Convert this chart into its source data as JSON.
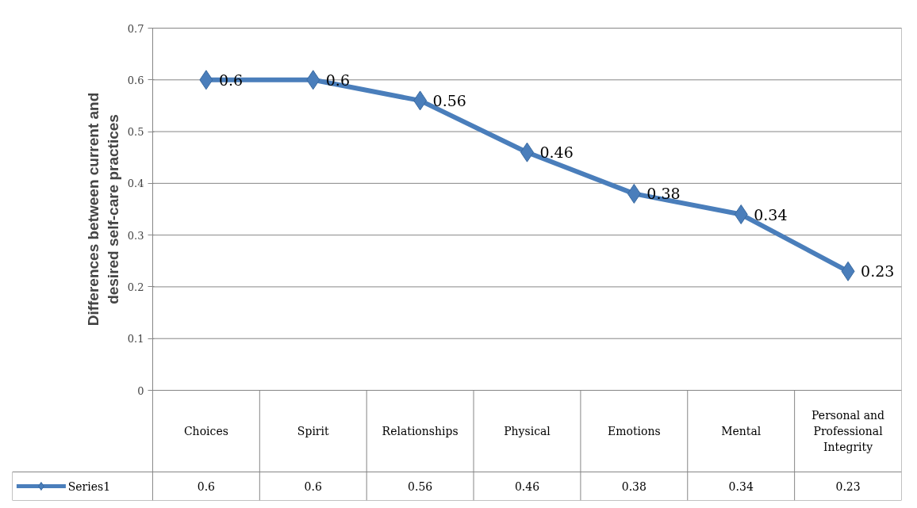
{
  "chart_data": {
    "type": "line",
    "ylabel": "Differences between current and desired self-care practices",
    "categories": [
      "Choices",
      "Spirit",
      "Relationships",
      "Physical",
      "Emotions",
      "Mental",
      "Personal and Professional Integrity"
    ],
    "series": [
      {
        "name": "Series1",
        "color": "#4a7ebb",
        "values": [
          0.6,
          0.6,
          0.56,
          0.46,
          0.38,
          0.34,
          0.23
        ],
        "value_labels": [
          "0.6",
          "0.6",
          "0.56",
          "0.46",
          "0.38",
          "0.34",
          "0.23"
        ]
      }
    ],
    "ylim": [
      0,
      0.7
    ],
    "yticks": [
      0,
      0.1,
      0.2,
      0.3,
      0.4,
      0.5,
      0.6,
      0.7
    ],
    "grid": "y",
    "marker": "diamond",
    "data_labels": true
  }
}
